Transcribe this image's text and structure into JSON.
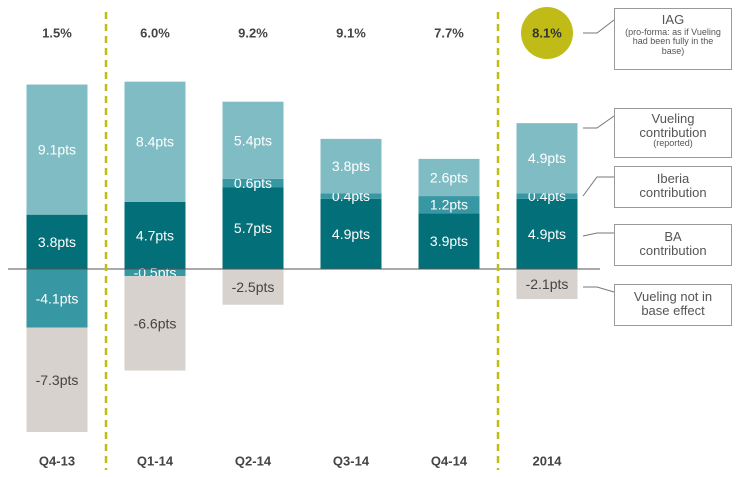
{
  "chart_data": {
    "type": "bar",
    "stacked": true,
    "categories": [
      "Q4-13",
      "Q1-14",
      "Q2-14",
      "Q3-14",
      "Q4-14",
      "2014"
    ],
    "totals": [
      "1.5%",
      "6.0%",
      "9.2%",
      "9.1%",
      "7.7%",
      "8.1%"
    ],
    "unit": "pts",
    "series": [
      {
        "name": "BA contribution",
        "color": "#036f78",
        "values": [
          3.8,
          4.7,
          5.7,
          4.9,
          3.9,
          4.9
        ],
        "labels": [
          "3.8pts",
          "4.7pts",
          "5.7pts",
          "4.9pts",
          "3.9pts",
          "4.9pts"
        ]
      },
      {
        "name": "Iberia contribution",
        "color": "#3797a2",
        "values": [
          -4.1,
          -0.5,
          0.6,
          0.4,
          1.2,
          0.4
        ],
        "labels": [
          "-4.1pts",
          "-0.5pts",
          "0.6pts",
          "0.4pts",
          "1.2pts",
          "0.4pts"
        ]
      },
      {
        "name": "Vueling contribution",
        "note": "(reported)",
        "color": "#80bcc4",
        "values": [
          9.1,
          8.4,
          5.4,
          3.8,
          2.6,
          4.9
        ],
        "labels": [
          "9.1pts",
          "8.4pts",
          "5.4pts",
          "3.8pts",
          "2.6pts",
          "4.9pts"
        ]
      },
      {
        "name": "Vueling not in base effect",
        "color": "#d7d2cd",
        "values": [
          -7.3,
          -6.6,
          -2.5,
          0,
          0,
          -2.1
        ],
        "labels": [
          "-7.3pts",
          "-6.6pts",
          "-2.5pts",
          "",
          "",
          "-2.1pts"
        ]
      }
    ],
    "highlight": {
      "category": "2014",
      "label": "8.1%",
      "color": "#c0bb16"
    },
    "legend_position": "right",
    "grid": false,
    "separators_after": [
      "Q4-13",
      "Q4-14"
    ],
    "separator_color": "#c0bb16",
    "ylim": [
      -12,
      13
    ]
  },
  "legend": {
    "iag_title": "IAG",
    "iag_note": "(pro-forma: as if Vueling had been fully in the base)",
    "vueling_title": "Vueling contribution",
    "vueling_note": "(reported)",
    "iberia_title": "Iberia contribution",
    "ba_title": "BA contribution",
    "notbase_title": "Vueling not in base effect"
  }
}
